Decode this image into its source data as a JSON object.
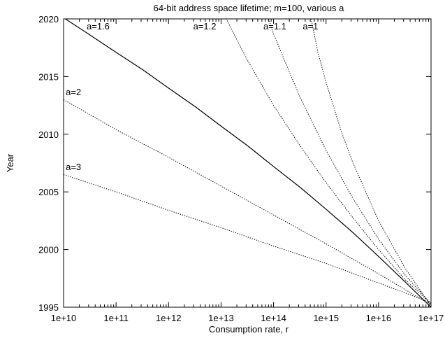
{
  "chart_data": {
    "type": "line",
    "title": "64-bit address space lifetime; m=100, various a",
    "xlabel": "Consumption rate, r",
    "ylabel": "Year",
    "x_scale": "log",
    "xlim": [
      10000000000.0,
      1e+17
    ],
    "ylim": [
      1995,
      2020
    ],
    "grid": false,
    "x_ticks": [
      10000000000.0,
      100000000000.0,
      1000000000000.0,
      10000000000000.0,
      100000000000000.0,
      1000000000000000.0,
      1e+16,
      1e+17
    ],
    "x_tick_labels": [
      "1e+10",
      "1e+11",
      "1e+12",
      "1e+13",
      "1e+14",
      "1e+15",
      "1e+16",
      "1e+17"
    ],
    "y_ticks": [
      1995,
      2000,
      2005,
      2010,
      2015,
      2020
    ],
    "y_tick_labels": [
      "1995",
      "2000",
      "2005",
      "2010",
      "2015",
      "2020"
    ],
    "series": [
      {
        "name": "a=1.6",
        "style": "solid",
        "x": [
          10000000000.0,
          32000000000.0,
          100000000000.0,
          320000000000.0,
          1000000000000.0,
          3200000000000.0,
          10000000000000.0,
          32000000000000.0,
          100000000000000.0,
          320000000000000.0,
          1000000000000000.0,
          3200000000000000.0,
          1e+16,
          3.2e+16,
          1e+17
        ],
        "y": [
          2020.1,
          2018.6,
          2017.1,
          2015.6,
          2014.0,
          2012.4,
          2010.7,
          2009.0,
          2007.2,
          2005.4,
          2003.5,
          2001.5,
          1999.4,
          1997.2,
          1995.0
        ]
      },
      {
        "name": "a=2",
        "style": "dotted",
        "x": [
          10000000000.0,
          100000000000.0,
          1000000000000.0,
          10000000000000.0,
          100000000000000.0,
          1000000000000000.0,
          1e+16,
          1e+17
        ],
        "y": [
          2013.0,
          2010.4,
          2008.0,
          2005.5,
          2003.0,
          2000.5,
          1997.9,
          1995.2
        ]
      },
      {
        "name": "a=3",
        "style": "dotted",
        "x": [
          10000000000.0,
          100000000000.0,
          1000000000000.0,
          10000000000000.0,
          100000000000000.0,
          1000000000000000.0,
          1e+16,
          1e+17
        ],
        "y": [
          2006.5,
          2005.0,
          2003.4,
          2001.9,
          2000.3,
          1998.8,
          1997.1,
          1995.4
        ]
      },
      {
        "name": "a=1.2",
        "style": "dotted",
        "x": [
          12000000000000.0,
          18000000000000.0,
          32000000000000.0,
          100000000000000.0,
          320000000000000.0,
          1000000000000000.0,
          3200000000000000.0,
          1e+16,
          3.2e+16,
          1e+17
        ],
        "y": [
          2020.2,
          2018.6,
          2016.4,
          2012.5,
          2009.0,
          2005.8,
          2002.8,
          2000.0,
          1997.4,
          1995.3
        ]
      },
      {
        "name": "a=1.1",
        "style": "dotted",
        "x": [
          78000000000000.0,
          100000000000000.0,
          180000000000000.0,
          320000000000000.0,
          1000000000000000.0,
          3200000000000000.0,
          1e+16,
          3.2e+16,
          1e+17
        ],
        "y": [
          2020.2,
          2018.7,
          2015.9,
          2013.2,
          2008.6,
          2004.5,
          2000.9,
          1997.8,
          1995.3
        ]
      },
      {
        "name": "a=1",
        "style": "dotted",
        "x": [
          510000000000000.0,
          700000000000000.0,
          1000000000000000.0,
          2000000000000000.0,
          3200000000000000.0,
          1e+16,
          3.2e+16,
          1e+17
        ],
        "y": [
          2020.2,
          2017.1,
          2014.5,
          2010.1,
          2007.6,
          2002.5,
          1998.4,
          1995.1
        ]
      }
    ],
    "annotations": [
      {
        "text": "a=1.6",
        "x": 27500000000.0,
        "y": 2019.1
      },
      {
        "text": "a=1.2",
        "x": 2950000000000.0,
        "y": 2019.1
      },
      {
        "text": "a=1.1",
        "x": 64000000000000.0,
        "y": 2019.1
      },
      {
        "text": "a=1",
        "x": 360000000000000.0,
        "y": 2019.1
      },
      {
        "text": "a=2",
        "x": 11000000000.0,
        "y": 2013.4
      },
      {
        "text": "a=3",
        "x": 11000000000.0,
        "y": 2006.9
      }
    ]
  }
}
